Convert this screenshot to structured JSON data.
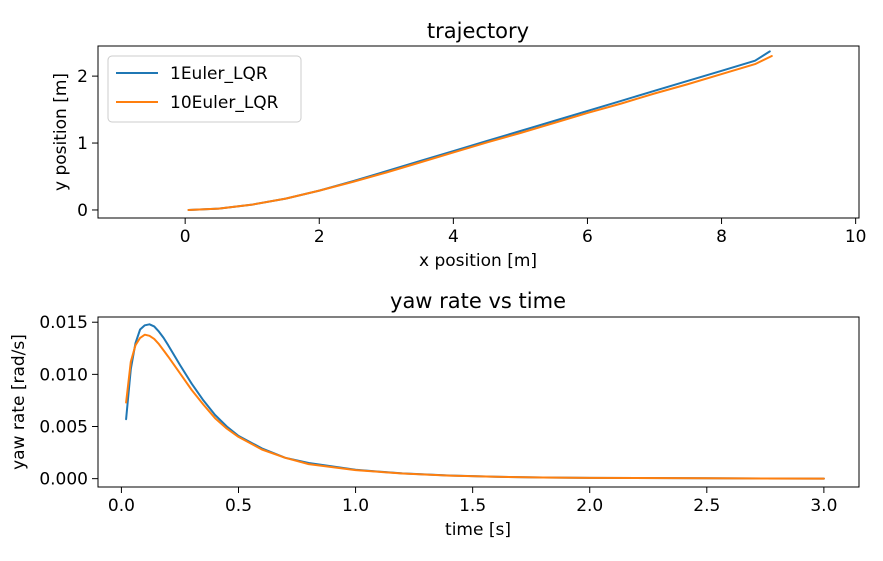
{
  "chart_data": [
    {
      "type": "line",
      "title": "trajectory",
      "xlabel": "x position [m]",
      "ylabel": "y position [m]",
      "xlim": [
        -1.3,
        10.05
      ],
      "ylim": [
        -0.12,
        2.45
      ],
      "xticks": [
        0,
        2,
        4,
        6,
        8,
        10
      ],
      "yticks": [
        0,
        1,
        2
      ],
      "xtick_labels": [
        "0",
        "2",
        "4",
        "6",
        "8",
        "10"
      ],
      "ytick_labels": [
        "0",
        "1",
        "2"
      ],
      "grid": false,
      "legend": "top-left",
      "series": [
        {
          "name": "1Euler_LQR",
          "color": "#1f77b4",
          "x": [
            0.05,
            0.5,
            1.0,
            1.5,
            2.0,
            2.5,
            3.0,
            3.5,
            4.0,
            4.5,
            5.0,
            5.5,
            6.0,
            6.5,
            7.0,
            7.5,
            8.0,
            8.5,
            8.72
          ],
          "y": [
            0.0,
            0.02,
            0.08,
            0.17,
            0.29,
            0.43,
            0.58,
            0.73,
            0.88,
            1.03,
            1.18,
            1.33,
            1.48,
            1.63,
            1.78,
            1.93,
            2.08,
            2.23,
            2.37
          ]
        },
        {
          "name": "10Euler_LQR",
          "color": "#ff7f0e",
          "x": [
            0.05,
            0.5,
            1.0,
            1.5,
            2.0,
            2.5,
            3.0,
            3.5,
            4.0,
            4.5,
            5.0,
            5.5,
            6.0,
            6.5,
            7.0,
            7.5,
            8.0,
            8.5,
            8.75
          ],
          "y": [
            0.0,
            0.02,
            0.08,
            0.17,
            0.29,
            0.42,
            0.56,
            0.71,
            0.86,
            1.01,
            1.15,
            1.3,
            1.45,
            1.59,
            1.74,
            1.88,
            2.03,
            2.18,
            2.3
          ]
        }
      ]
    },
    {
      "type": "line",
      "title": "yaw rate vs time",
      "xlabel": "time [s]",
      "ylabel": "yaw rate [rad/s]",
      "xlim": [
        -0.1,
        3.15
      ],
      "ylim": [
        -0.0008,
        0.0155
      ],
      "xticks": [
        0.0,
        0.5,
        1.0,
        1.5,
        2.0,
        2.5,
        3.0
      ],
      "yticks": [
        0.0,
        0.005,
        0.01,
        0.015
      ],
      "xtick_labels": [
        "0.0",
        "0.5",
        "1.0",
        "1.5",
        "2.0",
        "2.5",
        "3.0"
      ],
      "ytick_labels": [
        "0.000",
        "0.005",
        "0.010",
        "0.015"
      ],
      "grid": false,
      "series": [
        {
          "name": "1Euler_LQR",
          "color": "#1f77b4",
          "x": [
            0.02,
            0.04,
            0.06,
            0.08,
            0.1,
            0.12,
            0.14,
            0.16,
            0.18,
            0.2,
            0.25,
            0.3,
            0.35,
            0.4,
            0.45,
            0.5,
            0.6,
            0.7,
            0.8,
            1.0,
            1.2,
            1.4,
            1.6,
            1.8,
            2.0,
            2.5,
            3.0
          ],
          "y": [
            0.0057,
            0.0105,
            0.013,
            0.0143,
            0.0147,
            0.0148,
            0.0146,
            0.0141,
            0.0135,
            0.0128,
            0.0109,
            0.0091,
            0.0075,
            0.0061,
            0.005,
            0.0041,
            0.0029,
            0.002,
            0.0015,
            0.00085,
            0.0005,
            0.0003,
            0.00018,
            0.00011,
            7e-05,
            3e-05,
            1e-05
          ]
        },
        {
          "name": "10Euler_LQR",
          "color": "#ff7f0e",
          "x": [
            0.02,
            0.04,
            0.06,
            0.08,
            0.1,
            0.12,
            0.14,
            0.16,
            0.18,
            0.2,
            0.25,
            0.3,
            0.35,
            0.4,
            0.45,
            0.5,
            0.6,
            0.7,
            0.8,
            1.0,
            1.2,
            1.4,
            1.6,
            1.8,
            2.0,
            2.5,
            3.0
          ],
          "y": [
            0.0073,
            0.0112,
            0.0128,
            0.0135,
            0.0138,
            0.0137,
            0.0134,
            0.0129,
            0.0123,
            0.0117,
            0.0101,
            0.0085,
            0.0071,
            0.0058,
            0.0048,
            0.004,
            0.0028,
            0.002,
            0.0014,
            0.00082,
            0.00049,
            0.00029,
            0.00018,
            0.00011,
            7e-05,
            3e-05,
            1e-05
          ]
        }
      ]
    }
  ]
}
